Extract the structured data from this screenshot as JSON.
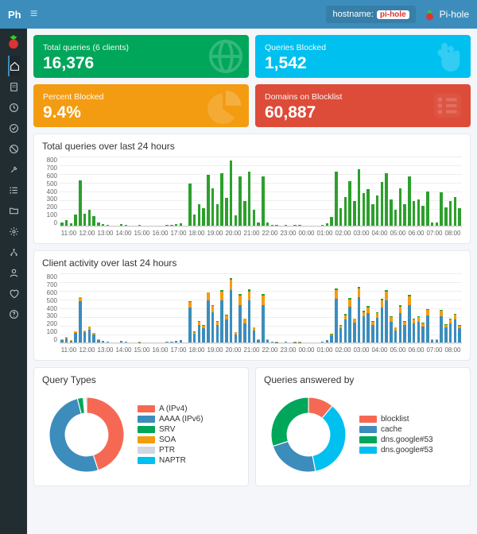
{
  "topbar": {
    "brand": "Ph",
    "hostname_label": "hostname:",
    "hostname_value": "pi-hole",
    "app_name": "Pi-hole"
  },
  "sidebar": {
    "items": [
      "home",
      "doc",
      "clock",
      "check",
      "ban",
      "tools",
      "list",
      "folder",
      "settings",
      "network",
      "user",
      "donate",
      "help"
    ],
    "active_index": 0
  },
  "colors": {
    "green": "#00a65a",
    "blue": "#00c0ef",
    "orange": "#f39c12",
    "red": "#dd4b39",
    "chart_green": "#2ca02c",
    "chart_blue": "#3c8dbc",
    "chart_orange": "#f39c12",
    "chart_red": "#dd4b39",
    "chart_teal": "#00a19a",
    "pie_red": "#f56954",
    "pie_blue": "#3c8dbc",
    "pie_green": "#00a65a",
    "pie_cyan": "#00c0ef",
    "pie_yellow": "#f39c12",
    "pie_grey": "#d2d6de",
    "grid": "#eeeeee",
    "panel_bg": "#ffffff"
  },
  "cards": [
    {
      "label": "Total queries (6 clients)",
      "value": "16,376",
      "color": "green",
      "icon": "globe"
    },
    {
      "label": "Queries Blocked",
      "value": "1,542",
      "color": "blue",
      "icon": "hand"
    },
    {
      "label": "Percent Blocked",
      "value": "9.4%",
      "color": "orange",
      "icon": "pie"
    },
    {
      "label": "Domains on Blocklist",
      "value": "60,887",
      "color": "red",
      "icon": "list"
    }
  ],
  "chart24": {
    "title": "Total queries over last 24 hours",
    "ymax": 800,
    "ystep": 100,
    "xlabels": [
      "11:00",
      "12:00",
      "13:00",
      "14:00",
      "15:00",
      "16:00",
      "17:00",
      "18:00",
      "19:00",
      "20:00",
      "21:00",
      "22:00",
      "23:00",
      "00:00",
      "01:00",
      "02:00",
      "03:00",
      "04:00",
      "05:00",
      "06:00",
      "07:00",
      "08:00"
    ],
    "slots_per_label": 4,
    "data": {
      "color_key": "chart_green",
      "values": [
        40,
        60,
        30,
        130,
        520,
        140,
        180,
        110,
        40,
        20,
        10,
        0,
        0,
        20,
        10,
        0,
        0,
        5,
        0,
        0,
        0,
        0,
        0,
        10,
        10,
        20,
        30,
        0,
        480,
        130,
        250,
        200,
        580,
        430,
        250,
        600,
        320,
        750,
        120,
        560,
        280,
        620,
        180,
        40,
        560,
        40,
        10,
        5,
        0,
        10,
        0,
        5,
        5,
        0,
        0,
        0,
        0,
        10,
        30,
        100,
        620,
        200,
        330,
        510,
        280,
        650,
        370,
        420,
        250,
        350,
        500,
        600,
        300,
        180,
        430,
        250,
        560,
        280,
        300,
        230,
        390,
        40,
        40,
        380,
        210,
        280,
        330,
        200
      ]
    }
  },
  "clientChart": {
    "title": "Client activity over last 24 hours",
    "ymax": 800,
    "ystep": 100,
    "xlabels": [
      "11:00",
      "12:00",
      "13:00",
      "14:00",
      "15:00",
      "16:00",
      "17:00",
      "18:00",
      "19:00",
      "20:00",
      "21:00",
      "22:00",
      "23:00",
      "00:00",
      "01:00",
      "02:00",
      "03:00",
      "04:00",
      "05:00",
      "06:00",
      "07:00",
      "08:00"
    ],
    "slots_per_label": 4,
    "stacked": true,
    "layers": [
      {
        "color_key": "chart_blue",
        "values": [
          30,
          50,
          20,
          110,
          470,
          120,
          150,
          90,
          30,
          15,
          8,
          0,
          0,
          15,
          8,
          0,
          0,
          4,
          0,
          0,
          0,
          0,
          0,
          8,
          8,
          15,
          24,
          0,
          400,
          100,
          200,
          160,
          480,
          350,
          200,
          480,
          260,
          600,
          90,
          430,
          220,
          480,
          140,
          30,
          430,
          30,
          8,
          4,
          0,
          8,
          0,
          4,
          4,
          0,
          0,
          0,
          0,
          8,
          24,
          80,
          500,
          160,
          260,
          410,
          230,
          520,
          300,
          340,
          200,
          280,
          400,
          480,
          240,
          140,
          340,
          200,
          430,
          220,
          240,
          180,
          310,
          30,
          30,
          300,
          170,
          220,
          260,
          160
        ]
      },
      {
        "color_key": "chart_orange",
        "values": [
          5,
          10,
          5,
          20,
          50,
          20,
          30,
          20,
          5,
          3,
          2,
          0,
          0,
          3,
          2,
          0,
          0,
          1,
          0,
          0,
          0,
          0,
          0,
          2,
          2,
          3,
          5,
          0,
          60,
          20,
          40,
          30,
          90,
          70,
          40,
          100,
          50,
          120,
          25,
          110,
          50,
          100,
          30,
          6,
          110,
          6,
          2,
          1,
          0,
          2,
          0,
          1,
          1,
          0,
          0,
          0,
          0,
          2,
          5,
          15,
          100,
          30,
          50,
          80,
          40,
          100,
          50,
          60,
          35,
          55,
          80,
          100,
          50,
          30,
          70,
          40,
          100,
          45,
          50,
          40,
          60,
          6,
          6,
          60,
          30,
          45,
          55,
          30
        ]
      },
      {
        "color_key": "chart_green",
        "values": [
          3,
          0,
          3,
          0,
          0,
          0,
          0,
          0,
          3,
          0,
          0,
          0,
          0,
          0,
          0,
          0,
          0,
          0,
          0,
          0,
          0,
          0,
          0,
          0,
          0,
          0,
          0,
          0,
          10,
          6,
          10,
          6,
          6,
          6,
          6,
          16,
          6,
          20,
          3,
          16,
          6,
          26,
          6,
          3,
          16,
          3,
          0,
          0,
          0,
          0,
          0,
          0,
          0,
          0,
          0,
          0,
          0,
          0,
          0,
          3,
          16,
          6,
          16,
          16,
          6,
          20,
          16,
          16,
          10,
          10,
          16,
          16,
          6,
          6,
          16,
          6,
          20,
          10,
          6,
          6,
          16,
          3,
          3,
          16,
          6,
          10,
          10,
          6
        ]
      }
    ]
  },
  "donut1": {
    "title": "Query Types",
    "legend": [
      {
        "label": "A (IPv4)",
        "color_key": "pie_red"
      },
      {
        "label": "AAAA (IPv6)",
        "color_key": "pie_blue"
      },
      {
        "label": "SRV",
        "color_key": "pie_green"
      },
      {
        "label": "SOA",
        "color_key": "pie_yellow"
      },
      {
        "label": "PTR",
        "color_key": "pie_grey"
      },
      {
        "label": "NAPTR",
        "color_key": "pie_cyan"
      }
    ],
    "slices": [
      {
        "color_key": "pie_red",
        "fraction": 0.45
      },
      {
        "color_key": "pie_blue",
        "fraction": 0.51
      },
      {
        "color_key": "pie_green",
        "fraction": 0.025
      },
      {
        "color_key": "pie_yellow",
        "fraction": 0.005
      },
      {
        "color_key": "pie_grey",
        "fraction": 0.005
      },
      {
        "color_key": "pie_cyan",
        "fraction": 0.005
      }
    ]
  },
  "donut2": {
    "title": "Queries answered by",
    "legend": [
      {
        "label": "blocklist",
        "color_key": "pie_red"
      },
      {
        "label": "cache",
        "color_key": "pie_blue"
      },
      {
        "label": "dns.google#53",
        "color_key": "pie_green"
      },
      {
        "label": "dns.google#53",
        "color_key": "pie_cyan"
      }
    ],
    "slices": [
      {
        "color_key": "pie_red",
        "fraction": 0.11
      },
      {
        "color_key": "pie_cyan",
        "fraction": 0.36
      },
      {
        "color_key": "pie_blue",
        "fraction": 0.23
      },
      {
        "color_key": "pie_green",
        "fraction": 0.3
      }
    ]
  }
}
